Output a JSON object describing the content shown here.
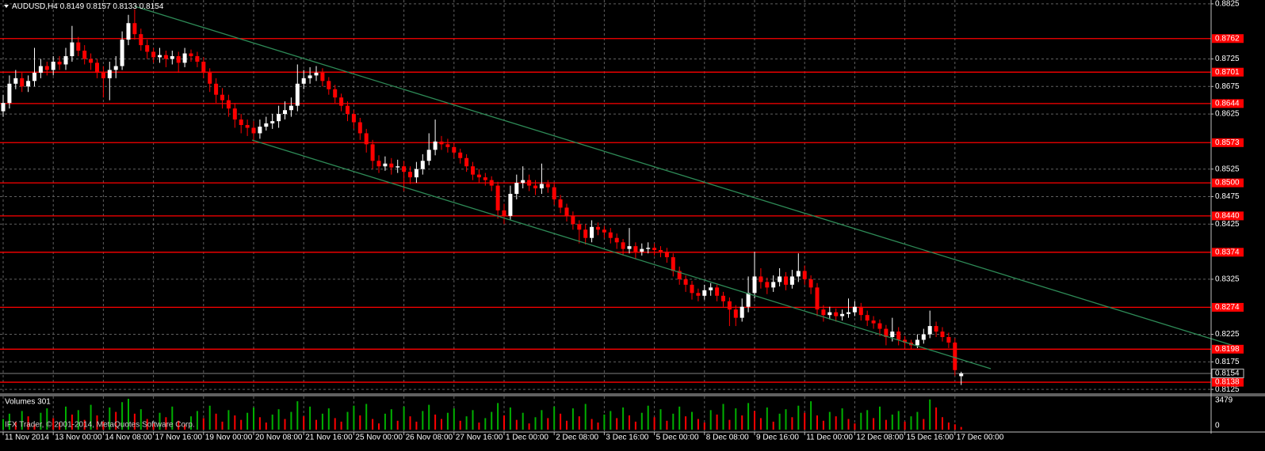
{
  "chart_data": {
    "type": "candlestick",
    "symbol": "AUDUSD,H4",
    "copyright": "IFX Trader, © 2001-2014, MetaQuotes Software Corp.",
    "volume_title": "Volumes 301",
    "categories": [
      "11 Nov 2014",
      null,
      null,
      null,
      null,
      null,
      null,
      null,
      "13 Nov 00:00",
      null,
      null,
      null,
      null,
      null,
      null,
      null,
      "14 Nov 08:00",
      null,
      null,
      null,
      null,
      null,
      null,
      null,
      "17 Nov 16:00",
      null,
      null,
      null,
      null,
      null,
      null,
      null,
      "19 Nov 00:00",
      null,
      null,
      null,
      null,
      null,
      null,
      null,
      "20 Nov 08:00",
      null,
      null,
      null,
      null,
      null,
      null,
      null,
      "21 Nov 16:00",
      null,
      null,
      null,
      null,
      null,
      null,
      null,
      "25 Nov 00:00",
      null,
      null,
      null,
      null,
      null,
      null,
      null,
      "26 Nov 08:00",
      null,
      null,
      null,
      null,
      null,
      null,
      null,
      "27 Nov 16:00",
      null,
      null,
      null,
      null,
      null,
      null,
      null,
      "1 Dec 00:00",
      null,
      null,
      null,
      null,
      null,
      null,
      null,
      "2 Dec 08:00",
      null,
      null,
      null,
      null,
      null,
      null,
      null,
      "3 Dec 16:00",
      null,
      null,
      null,
      null,
      null,
      null,
      null,
      "5 Dec 00:00",
      null,
      null,
      null,
      null,
      null,
      null,
      null,
      "8 Dec 08:00",
      null,
      null,
      null,
      null,
      null,
      null,
      null,
      "9 Dec 16:00",
      null,
      null,
      null,
      null,
      null,
      null,
      null,
      "11 Dec 00:00",
      null,
      null,
      null,
      null,
      null,
      null,
      null,
      "12 Dec 08:00",
      null,
      null,
      null,
      null,
      null,
      null,
      null,
      "15 Dec 16:00",
      null,
      null,
      null,
      null,
      null,
      null,
      null,
      "17 Dec 00:00",
      null
    ],
    "open": [
      0.863,
      0.8645,
      0.868,
      0.869,
      0.8675,
      0.8685,
      0.87,
      0.8712,
      0.8705,
      0.872,
      0.8715,
      0.873,
      0.8755,
      0.874,
      0.8725,
      0.8718,
      0.87,
      0.869,
      0.8705,
      0.8712,
      0.876,
      0.879,
      0.877,
      0.875,
      0.8738,
      0.8728,
      0.8732,
      0.8725,
      0.873,
      0.8718,
      0.8735,
      0.873,
      0.872,
      0.87,
      0.868,
      0.866,
      0.865,
      0.8635,
      0.8615,
      0.8605,
      0.86,
      0.859,
      0.8602,
      0.8608,
      0.8612,
      0.8625,
      0.8632,
      0.864,
      0.868,
      0.869,
      0.8695,
      0.87,
      0.8685,
      0.867,
      0.8655,
      0.864,
      0.8625,
      0.861,
      0.859,
      0.857,
      0.854,
      0.853,
      0.8535,
      0.8528,
      0.853,
      0.852,
      0.851,
      0.8525,
      0.854,
      0.856,
      0.8575,
      0.857,
      0.8565,
      0.8555,
      0.8545,
      0.853,
      0.8515,
      0.851,
      0.8505,
      0.8495,
      0.845,
      0.844,
      0.848,
      0.85,
      0.8505,
      0.8495,
      0.849,
      0.8498,
      0.8492,
      0.847,
      0.8455,
      0.844,
      0.8425,
      0.8415,
      0.84,
      0.842,
      0.8415,
      0.841,
      0.84,
      0.8392,
      0.838,
      0.8385,
      0.8375,
      0.838,
      0.8382,
      0.8378,
      0.8375,
      0.8365,
      0.834,
      0.8325,
      0.8315,
      0.83,
      0.8295,
      0.8305,
      0.831,
      0.8295,
      0.8285,
      0.827,
      0.8255,
      0.8275,
      0.83,
      0.833,
      0.832,
      0.831,
      0.832,
      0.833,
      0.8315,
      0.833,
      0.834,
      0.8325,
      0.831,
      0.827,
      0.826,
      0.8265,
      0.8258,
      0.8262,
      0.8265,
      0.8275,
      0.826,
      0.825,
      0.8245,
      0.8235,
      0.822,
      0.823,
      0.8215,
      0.821,
      0.8205,
      0.8215,
      0.8225,
      0.824,
      0.823,
      0.822,
      0.821,
      0.8149
    ],
    "high": [
      0.866,
      0.8695,
      0.8705,
      0.87,
      0.8695,
      0.8745,
      0.8725,
      0.872,
      0.873,
      0.873,
      0.8745,
      0.8785,
      0.8765,
      0.875,
      0.8735,
      0.8725,
      0.8712,
      0.872,
      0.873,
      0.8775,
      0.8805,
      0.8815,
      0.878,
      0.876,
      0.8745,
      0.8745,
      0.874,
      0.874,
      0.8738,
      0.8745,
      0.8742,
      0.8738,
      0.8728,
      0.8708,
      0.869,
      0.8672,
      0.866,
      0.8645,
      0.8625,
      0.8615,
      0.8612,
      0.8615,
      0.862,
      0.8625,
      0.864,
      0.8648,
      0.8655,
      0.8715,
      0.8705,
      0.871,
      0.8712,
      0.8708,
      0.8692,
      0.8678,
      0.8662,
      0.8648,
      0.8632,
      0.8618,
      0.8598,
      0.8578,
      0.855,
      0.8548,
      0.8545,
      0.8542,
      0.854,
      0.853,
      0.8538,
      0.8552,
      0.859,
      0.8615,
      0.8585,
      0.858,
      0.8572,
      0.8562,
      0.8552,
      0.8538,
      0.8525,
      0.8518,
      0.8512,
      0.8502,
      0.8462,
      0.8495,
      0.8515,
      0.853,
      0.8515,
      0.8505,
      0.8535,
      0.8505,
      0.85,
      0.8478,
      0.8462,
      0.8448,
      0.8432,
      0.8425,
      0.8432,
      0.8428,
      0.8422,
      0.8418,
      0.8408,
      0.8398,
      0.8418,
      0.8392,
      0.839,
      0.8392,
      0.839,
      0.8385,
      0.8382,
      0.8372,
      0.8348,
      0.8332,
      0.8322,
      0.8308,
      0.8315,
      0.8318,
      0.8315,
      0.8302,
      0.8292,
      0.8278,
      0.829,
      0.833,
      0.8375,
      0.8345,
      0.8328,
      0.8332,
      0.8345,
      0.8338,
      0.8342,
      0.8372,
      0.835,
      0.8332,
      0.8318,
      0.8278,
      0.8275,
      0.8272,
      0.827,
      0.829,
      0.8285,
      0.8282,
      0.8268,
      0.8258,
      0.8252,
      0.8242,
      0.8255,
      0.8238,
      0.8222,
      0.8215,
      0.8225,
      0.8235,
      0.8268,
      0.8248,
      0.8238,
      0.8228,
      0.8218,
      0.8157
    ],
    "low": [
      0.862,
      0.8635,
      0.867,
      0.8665,
      0.8665,
      0.8675,
      0.869,
      0.8695,
      0.8695,
      0.8705,
      0.8705,
      0.872,
      0.873,
      0.8715,
      0.8705,
      0.869,
      0.8655,
      0.865,
      0.869,
      0.8705,
      0.875,
      0.876,
      0.874,
      0.8725,
      0.8718,
      0.8718,
      0.871,
      0.8715,
      0.87,
      0.871,
      0.872,
      0.871,
      0.869,
      0.8665,
      0.8645,
      0.8635,
      0.862,
      0.86,
      0.859,
      0.8585,
      0.8575,
      0.858,
      0.8595,
      0.8598,
      0.86,
      0.8615,
      0.862,
      0.863,
      0.867,
      0.868,
      0.8685,
      0.8675,
      0.866,
      0.8645,
      0.863,
      0.8612,
      0.8598,
      0.8578,
      0.8555,
      0.8525,
      0.8518,
      0.8522,
      0.8515,
      0.8518,
      0.8485,
      0.8498,
      0.85,
      0.8515,
      0.8532,
      0.855,
      0.856,
      0.8555,
      0.8545,
      0.8535,
      0.852,
      0.8505,
      0.85,
      0.8495,
      0.8485,
      0.8435,
      0.8425,
      0.8432,
      0.847,
      0.849,
      0.8485,
      0.8478,
      0.848,
      0.8482,
      0.846,
      0.8445,
      0.843,
      0.8415,
      0.839,
      0.8388,
      0.8392,
      0.8405,
      0.84,
      0.839,
      0.838,
      0.8368,
      0.8372,
      0.8362,
      0.8368,
      0.8372,
      0.8368,
      0.8365,
      0.8355,
      0.833,
      0.8315,
      0.8302,
      0.8288,
      0.8285,
      0.8288,
      0.8295,
      0.8285,
      0.8275,
      0.824,
      0.824,
      0.8248,
      0.8265,
      0.829,
      0.8308,
      0.8298,
      0.8302,
      0.8312,
      0.8305,
      0.8308,
      0.832,
      0.8315,
      0.8298,
      0.8258,
      0.8248,
      0.8252,
      0.8248,
      0.825,
      0.8255,
      0.8258,
      0.825,
      0.824,
      0.8235,
      0.8222,
      0.8205,
      0.8212,
      0.8205,
      0.82,
      0.8198,
      0.82,
      0.8208,
      0.8218,
      0.822,
      0.8212,
      0.82,
      0.815,
      0.8133
    ],
    "close": [
      0.8645,
      0.868,
      0.869,
      0.8675,
      0.8685,
      0.87,
      0.8712,
      0.8705,
      0.872,
      0.8715,
      0.873,
      0.8755,
      0.874,
      0.8725,
      0.8718,
      0.87,
      0.869,
      0.8705,
      0.8712,
      0.876,
      0.879,
      0.877,
      0.875,
      0.8738,
      0.8728,
      0.8732,
      0.8725,
      0.873,
      0.8718,
      0.8735,
      0.873,
      0.872,
      0.87,
      0.868,
      0.866,
      0.865,
      0.8635,
      0.8615,
      0.8605,
      0.86,
      0.859,
      0.8602,
      0.8608,
      0.8612,
      0.8625,
      0.8632,
      0.864,
      0.868,
      0.869,
      0.8695,
      0.87,
      0.8685,
      0.867,
      0.8655,
      0.864,
      0.8625,
      0.861,
      0.859,
      0.857,
      0.854,
      0.853,
      0.8535,
      0.8528,
      0.853,
      0.852,
      0.851,
      0.8525,
      0.854,
      0.856,
      0.8575,
      0.857,
      0.8565,
      0.8555,
      0.8545,
      0.853,
      0.8515,
      0.851,
      0.8505,
      0.8495,
      0.845,
      0.844,
      0.848,
      0.85,
      0.8505,
      0.8495,
      0.849,
      0.8498,
      0.8492,
      0.847,
      0.8455,
      0.844,
      0.8425,
      0.8415,
      0.84,
      0.842,
      0.8415,
      0.841,
      0.84,
      0.8392,
      0.838,
      0.8385,
      0.8375,
      0.838,
      0.8382,
      0.8378,
      0.8375,
      0.8365,
      0.834,
      0.8325,
      0.8315,
      0.83,
      0.8295,
      0.8305,
      0.831,
      0.8295,
      0.8285,
      0.827,
      0.8255,
      0.8275,
      0.83,
      0.833,
      0.832,
      0.831,
      0.832,
      0.833,
      0.8315,
      0.833,
      0.834,
      0.8325,
      0.831,
      0.827,
      0.826,
      0.8265,
      0.8258,
      0.8262,
      0.8265,
      0.8275,
      0.826,
      0.825,
      0.8245,
      0.8235,
      0.822,
      0.823,
      0.8215,
      0.821,
      0.8205,
      0.8215,
      0.8225,
      0.824,
      0.823,
      0.822,
      0.821,
      0.816,
      0.8154
    ],
    "volume": [
      1200,
      1800,
      900,
      2100,
      1500,
      600,
      1900,
      2400,
      1300,
      800,
      2600,
      1700,
      2200,
      1100,
      2800,
      1600,
      900,
      2500,
      2000,
      3100,
      3479,
      1800,
      2300,
      1200,
      700,
      1900,
      1400,
      2600,
      1000,
      600,
      1500,
      2100,
      1300,
      2700,
      1800,
      900,
      2200,
      1600,
      1100,
      1900,
      2500,
      1400,
      800,
      1700,
      2300,
      1200,
      2000,
      3200,
      1500,
      2600,
      1100,
      1800,
      2400,
      1300,
      900,
      2000,
      2700,
      1600,
      2900,
      1200,
      700,
      1800,
      2300,
      1000,
      2600,
      1500,
      900,
      2100,
      2800,
      1700,
      1200,
      1900,
      2400,
      1000,
      1500,
      2200,
      800,
      1300,
      2000,
      3000,
      1600,
      2500,
      1100,
      1900,
      700,
      1400,
      2200,
      1300,
      2600,
      1800,
      1000,
      2400,
      1500,
      2900,
      1200,
      800,
      1700,
      2100,
      1300,
      2500,
      1600,
      900,
      1900,
      2700,
      1400,
      2300,
      1000,
      1800,
      2600,
      1500,
      2000,
      1200,
      800,
      2200,
      1700,
      2900,
      1100,
      2400,
      1600,
      3000,
      2100,
      1300,
      2500,
      900,
      1800,
      2300,
      1400,
      2700,
      1900,
      3200,
      1600,
      1000,
      2000,
      1500,
      2400,
      1200,
      700,
      1900,
      2200,
      1300,
      2600,
      1100,
      1700,
      2100,
      900,
      1500,
      2000,
      1200,
      3400,
      2500,
      1400,
      800,
      600,
      300
    ],
    "ylim": [
      0.8118,
      0.8832
    ],
    "yticks": [
      0.8825,
      0.8725,
      0.8675,
      0.8625,
      0.8525,
      0.8475,
      0.8425,
      0.8325,
      0.8225,
      0.8175,
      0.8125
    ],
    "volume_lim": [
      0,
      3479
    ],
    "volume_ticks": [
      3479,
      0
    ],
    "hlines": [
      0.8762,
      0.8701,
      0.8644,
      0.8573,
      {
        "value": 0.85,
        "label": "0.8500"
      },
      {
        "value": 0.844,
        "label": "0.8440"
      },
      0.8374,
      0.8274,
      0.8198,
      0.8138
    ],
    "grid": true,
    "up_color": "#ffffff",
    "down_color": "#ff0000",
    "line_color": "#ff0000",
    "volume_up_color": "#00b000",
    "volume_down_color": "#ff0000"
  }
}
